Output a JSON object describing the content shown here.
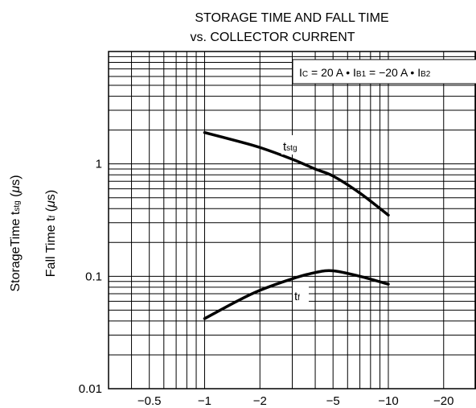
{
  "chart_data": {
    "type": "line",
    "title_line1": "STORAGE TIME AND FALL TIME",
    "title_line2": "vs. COLLECTOR CURRENT",
    "ylabel_storage": {
      "main": "StorageTime  t",
      "sub": "stg",
      "unit_open": "  (",
      "mu": "μ",
      "unit_close": "s)"
    },
    "ylabel_fall": {
      "main": "Fall Time  t",
      "sub": "f",
      "unit_open": "  (",
      "mu": "μ",
      "unit_close": "s)"
    },
    "annotation": {
      "p1": "I",
      "s1": "C",
      "p2": " = 20 A • I",
      "s2": "B1",
      "p3": " = −20 A • I",
      "s3": "B2"
    },
    "x_scale": "log",
    "x_tick_values": [
      0.5,
      1,
      2,
      5,
      10,
      20
    ],
    "x_tick_labels": [
      "−0.5",
      "−1",
      "−2",
      "−5",
      "−10",
      "−20"
    ],
    "xlim": [
      0.3,
      30
    ],
    "y_scale": "log",
    "y_tick_values": [
      0.01,
      0.1,
      1
    ],
    "y_tick_labels": [
      "0.01",
      "0.1",
      "1"
    ],
    "ylim": [
      0.01,
      10
    ],
    "grid": true,
    "series": [
      {
        "name": "tstg",
        "label_main": "t",
        "label_sub": "stg",
        "x": [
          1,
          1.5,
          2,
          3,
          4,
          5,
          7,
          10
        ],
        "y": [
          1.9,
          1.6,
          1.4,
          1.1,
          0.9,
          0.78,
          0.55,
          0.35
        ]
      },
      {
        "name": "tf",
        "label_main": "t",
        "label_sub": "f",
        "x": [
          1,
          1.5,
          2,
          3,
          4,
          5,
          7,
          10
        ],
        "y": [
          0.042,
          0.06,
          0.075,
          0.095,
          0.108,
          0.112,
          0.1,
          0.085
        ]
      }
    ]
  }
}
